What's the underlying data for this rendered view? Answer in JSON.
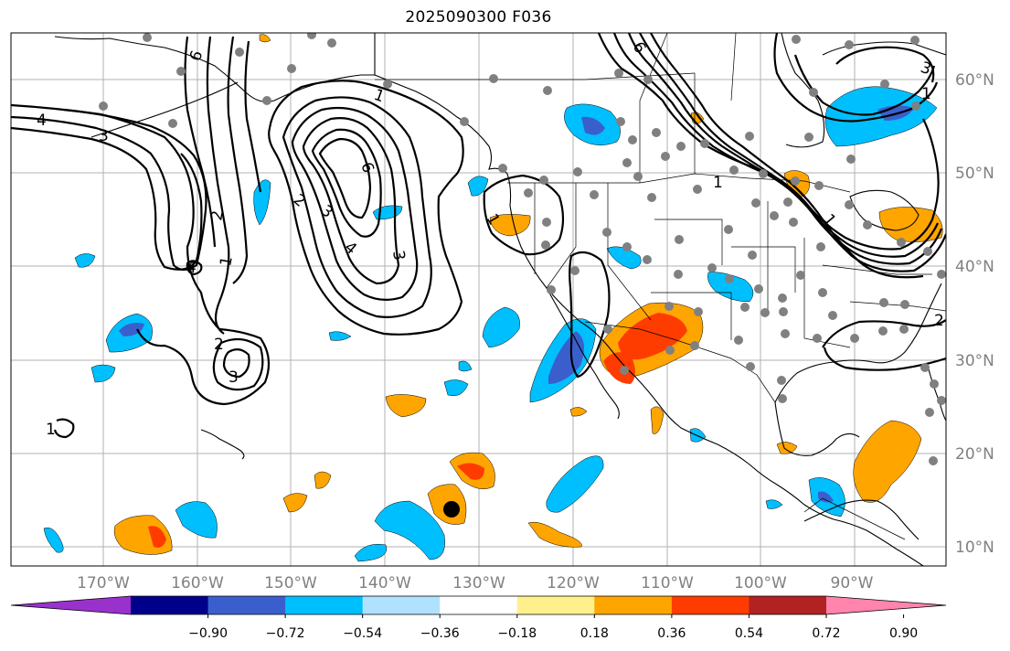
{
  "title": "2025090300 F036",
  "axes": {
    "lon_labels": [
      "170°W",
      "160°W",
      "150°W",
      "140°W",
      "130°W",
      "120°W",
      "110°W",
      "100°W",
      "90°W"
    ],
    "lat_labels": [
      "60°N",
      "50°N",
      "40°N",
      "30°N",
      "20°N",
      "10°N"
    ]
  },
  "colorbar": {
    "colors": [
      "#9932cc",
      "#00008b",
      "#3a5fcd",
      "#00bfff",
      "#b0e2ff",
      "#ffffff",
      "#fff08c",
      "#ffa500",
      "#ff3c00",
      "#b22222",
      "#ff85ad"
    ],
    "tick_labels": [
      "−0.90",
      "−0.72",
      "−0.54",
      "−0.36",
      "−0.18",
      "0.18",
      "0.36",
      "0.54",
      "0.72",
      "0.90"
    ]
  },
  "contour_labels": [
    "6",
    "4",
    "3",
    "2",
    "1",
    "1",
    "4",
    "3",
    "2",
    "1",
    "6",
    "4",
    "3",
    "2",
    "1",
    "3",
    "6",
    "1",
    "3",
    "1",
    "2",
    "1"
  ],
  "station_count": 96
}
